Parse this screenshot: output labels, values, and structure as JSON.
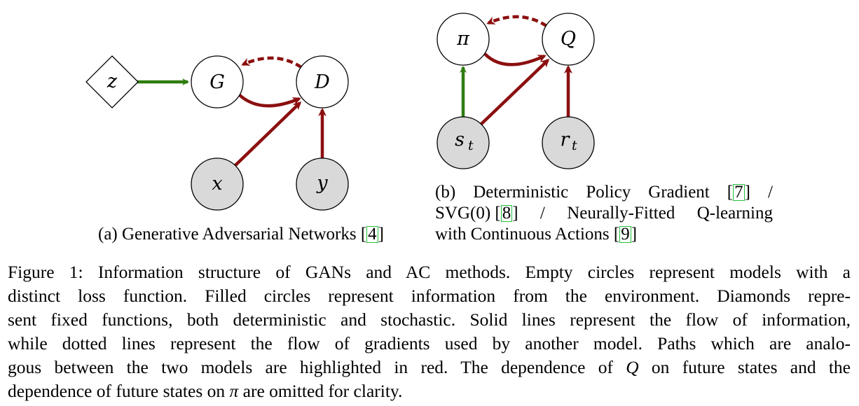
{
  "colors": {
    "green": "#2e7d0e",
    "red": "#8b0f0f",
    "filled": "#d9d9d9",
    "ref_box": "#23c23a"
  },
  "diagram_a": {
    "nodes": {
      "z": "z",
      "G": "G",
      "D": "D",
      "x": "x",
      "y": "y"
    },
    "caption": {
      "label": "(a) Generative Adversarial Networks",
      "ref": "4"
    }
  },
  "diagram_b": {
    "nodes": {
      "pi": "π",
      "Q": "Q",
      "s": "s",
      "s_sub": "t",
      "r": "r",
      "r_sub": "t"
    },
    "caption": {
      "line1": [
        "(b)",
        "Deterministic",
        "Policy",
        "Gradient"
      ],
      "ref1": "7",
      "sep1": "/",
      "line2_a": "SVG(0)",
      "ref2": "8",
      "line2_b": [
        "/",
        "Neurally-Fitted",
        "Q-learning"
      ],
      "line3": "with Continuous Actions",
      "ref3": "9"
    }
  },
  "caption": {
    "l1": "Figure 1: Information structure of GANs and AC methods. Empty circles represent models with a",
    "l2": "distinct loss function. Filled circles represent information from the environment. Diamonds repre-",
    "l3": "sent fixed functions, both deterministic and stochastic. Solid lines represent the flow of information,",
    "l4": "while dotted lines represent the flow of gradients used by another model. Paths which are analo-",
    "l5a": "gous between the two models are highlighted in red. The dependence of ",
    "l5_sym": "Q",
    "l5b": " on future states and the",
    "l6a": "dependence of future states on ",
    "l6_sym": "π",
    "l6b": " are omitted for clarity."
  }
}
